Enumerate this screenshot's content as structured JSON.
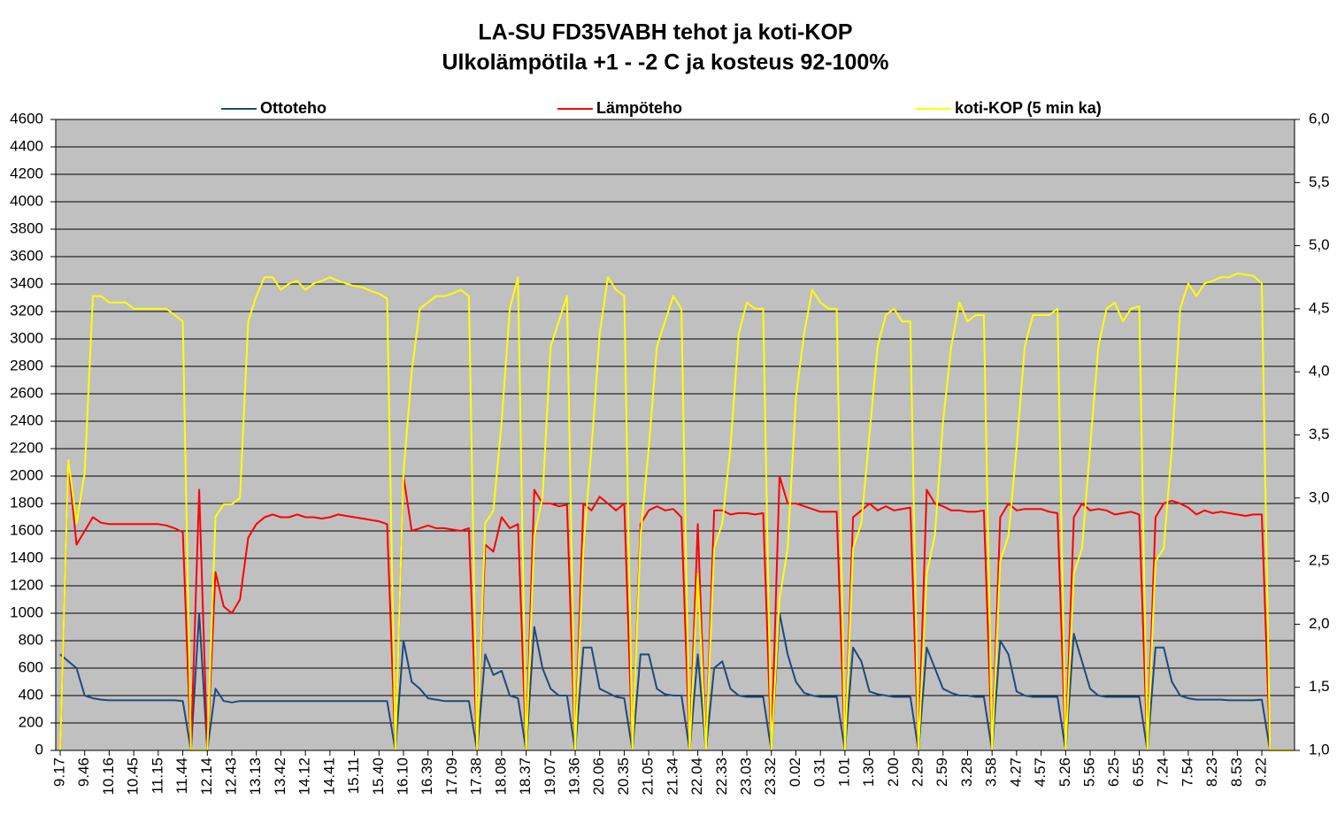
{
  "chart_data": {
    "type": "line",
    "title": "LA-SU FD35VABH  tehot ja koti-KOP",
    "subtitle": "Ulkolämpötila +1 - -2 C ja kosteus 92-100%",
    "categories": [
      "9.17",
      null,
      null,
      "9.46",
      null,
      null,
      "10.16",
      null,
      null,
      "10.45",
      null,
      null,
      "11.15",
      null,
      null,
      "11.44",
      null,
      null,
      "12.14",
      null,
      null,
      "12.43",
      null,
      null,
      "13.13",
      null,
      null,
      "13.42",
      null,
      null,
      "14.12",
      null,
      null,
      "14.41",
      null,
      null,
      "15.11",
      null,
      null,
      "15.40",
      null,
      null,
      "16.10",
      null,
      null,
      "16.39",
      null,
      null,
      "17.09",
      null,
      null,
      "17.38",
      null,
      null,
      "18.08",
      null,
      null,
      "18.37",
      null,
      null,
      "19.07",
      null,
      null,
      "19.36",
      null,
      null,
      "20.06",
      null,
      null,
      "20.35",
      null,
      null,
      "21.05",
      null,
      null,
      "21.34",
      null,
      null,
      "22.04",
      null,
      null,
      "22.33",
      null,
      null,
      "23.03",
      null,
      null,
      "23.32",
      null,
      null,
      "0.02",
      null,
      null,
      "0.31",
      null,
      null,
      "1.01",
      null,
      null,
      "1.30",
      null,
      null,
      "2.00",
      null,
      null,
      "2.29",
      null,
      null,
      "2.59",
      null,
      null,
      "3.28",
      null,
      null,
      "3.58",
      null,
      null,
      "4.27",
      null,
      null,
      "4.57",
      null,
      null,
      "5.26",
      null,
      null,
      "5.56",
      null,
      null,
      "6.25",
      null,
      null,
      "6.55",
      null,
      null,
      "7.24",
      null,
      null,
      "7.54",
      null,
      null,
      "8.23",
      null,
      null,
      "8.53",
      null,
      null,
      "9.22",
      null,
      null,
      null,
      null
    ],
    "series": [
      {
        "name": "Ottoteho",
        "color": "#1f497d",
        "values": [
          700,
          650,
          600,
          400,
          380,
          370,
          365,
          365,
          365,
          365,
          365,
          365,
          365,
          365,
          365,
          360,
          0,
          1000,
          0,
          450,
          360,
          350,
          360,
          360,
          360,
          360,
          360,
          360,
          360,
          360,
          360,
          360,
          360,
          360,
          360,
          360,
          360,
          360,
          360,
          360,
          360,
          0,
          800,
          500,
          450,
          380,
          370,
          360,
          360,
          360,
          360,
          0,
          700,
          550,
          580,
          400,
          380,
          0,
          900,
          600,
          450,
          400,
          400,
          0,
          750,
          750,
          450,
          420,
          390,
          380,
          0,
          700,
          700,
          450,
          410,
          400,
          400,
          0,
          700,
          0,
          600,
          650,
          450,
          400,
          390,
          390,
          390,
          0,
          1000,
          700,
          500,
          420,
          400,
          390,
          390,
          390,
          0,
          750,
          650,
          430,
          410,
          400,
          390,
          390,
          390,
          0,
          750,
          600,
          450,
          420,
          400,
          400,
          390,
          390,
          0,
          800,
          700,
          430,
          400,
          390,
          390,
          390,
          390,
          0,
          850,
          650,
          450,
          400,
          390,
          390,
          390,
          390,
          390,
          0,
          750,
          750,
          500,
          400,
          380,
          370,
          370,
          370,
          370,
          365,
          365,
          365,
          365,
          370,
          0,
          0,
          0,
          0
        ]
      },
      {
        "name": "Lämpöteho",
        "color": "#ff0000",
        "values": [
          0,
          2100,
          1500,
          1600,
          1700,
          1660,
          1650,
          1650,
          1650,
          1650,
          1650,
          1650,
          1650,
          1640,
          1620,
          1590,
          0,
          1900,
          0,
          1300,
          1050,
          1000,
          1100,
          1550,
          1650,
          1700,
          1720,
          1700,
          1700,
          1720,
          1700,
          1700,
          1690,
          1700,
          1720,
          1710,
          1700,
          1690,
          1680,
          1670,
          1650,
          0,
          2000,
          1600,
          1620,
          1640,
          1620,
          1620,
          1610,
          1600,
          1620,
          0,
          1500,
          1450,
          1700,
          1620,
          1650,
          0,
          1900,
          1800,
          1800,
          1780,
          1790,
          0,
          1800,
          1750,
          1850,
          1800,
          1750,
          1800,
          0,
          1650,
          1750,
          1780,
          1750,
          1760,
          1700,
          0,
          1650,
          0,
          1750,
          1750,
          1720,
          1730,
          1730,
          1720,
          1730,
          0,
          2000,
          1800,
          1800,
          1780,
          1760,
          1740,
          1740,
          1740,
          0,
          1700,
          1750,
          1800,
          1750,
          1780,
          1750,
          1760,
          1770,
          0,
          1900,
          1800,
          1780,
          1750,
          1750,
          1740,
          1740,
          1750,
          0,
          1700,
          1800,
          1750,
          1760,
          1760,
          1760,
          1740,
          1730,
          0,
          1700,
          1800,
          1750,
          1760,
          1750,
          1720,
          1730,
          1740,
          1720,
          0,
          1700,
          1800,
          1820,
          1800,
          1770,
          1720,
          1750,
          1730,
          1740,
          1730,
          1720,
          1710,
          1720,
          1720,
          0,
          0,
          0,
          0
        ]
      },
      {
        "name": "koti-KOP (5 min ka)",
        "color": "#ffff00",
        "axis": "y2",
        "values": [
          1,
          3.3,
          2.8,
          3.2,
          4.6,
          4.6,
          4.55,
          4.55,
          4.55,
          4.5,
          4.5,
          4.5,
          4.5,
          4.5,
          4.45,
          4.4,
          1,
          1,
          1,
          2.85,
          2.95,
          2.95,
          3,
          4.4,
          4.6,
          4.75,
          4.75,
          4.65,
          4.7,
          4.72,
          4.65,
          4.7,
          4.72,
          4.75,
          4.72,
          4.7,
          4.68,
          4.67,
          4.64,
          4.62,
          4.58,
          1,
          3.2,
          4,
          4.5,
          4.55,
          4.6,
          4.6,
          4.62,
          4.65,
          4.6,
          1,
          2.8,
          2.9,
          3.6,
          4.5,
          4.75,
          1,
          2.7,
          3,
          4.2,
          4.4,
          4.6,
          1,
          2.6,
          3.4,
          4.3,
          4.75,
          4.65,
          4.6,
          1,
          2.7,
          3.4,
          4.2,
          4.4,
          4.6,
          4.5,
          1,
          2.4,
          1,
          2.6,
          2.8,
          3.4,
          4.3,
          4.55,
          4.5,
          4.5,
          1,
          2.2,
          2.6,
          3.8,
          4.3,
          4.65,
          4.55,
          4.5,
          4.5,
          1,
          2.6,
          2.8,
          3.5,
          4.2,
          4.45,
          4.5,
          4.4,
          4.4,
          1,
          2.4,
          2.7,
          3.6,
          4.2,
          4.55,
          4.4,
          4.45,
          4.45,
          1,
          2.5,
          2.7,
          3.4,
          4.2,
          4.45,
          4.45,
          4.45,
          4.5,
          1,
          2.4,
          2.6,
          3.4,
          4.2,
          4.5,
          4.55,
          4.4,
          4.5,
          4.52,
          1,
          2.5,
          2.6,
          3.4,
          4.5,
          4.7,
          4.6,
          4.7,
          4.72,
          4.75,
          4.75,
          4.78,
          4.77,
          4.76,
          4.7,
          1,
          1,
          1,
          1
        ]
      }
    ],
    "ylim": [
      0,
      4600
    ],
    "yticks": [
      0,
      200,
      400,
      600,
      800,
      1000,
      1200,
      1400,
      1600,
      1800,
      2000,
      2200,
      2400,
      2600,
      2800,
      3000,
      3200,
      3400,
      3600,
      3800,
      4000,
      4200,
      4400,
      4600
    ],
    "y2lim": [
      1,
      6
    ],
    "y2ticks": [
      {
        "value": 1,
        "label": "1,0"
      },
      {
        "value": 1.5,
        "label": "1,5"
      },
      {
        "value": 2,
        "label": "2,0"
      },
      {
        "value": 2.5,
        "label": "2,5"
      },
      {
        "value": 3,
        "label": "3,0"
      },
      {
        "value": 3.5,
        "label": "3,5"
      },
      {
        "value": 4,
        "label": "4,0"
      },
      {
        "value": 4.5,
        "label": "4,5"
      },
      {
        "value": 5,
        "label": "5,0"
      },
      {
        "value": 5.5,
        "label": "5,5"
      },
      {
        "value": 6,
        "label": "6,0"
      }
    ],
    "grid": true,
    "legend": "top"
  }
}
